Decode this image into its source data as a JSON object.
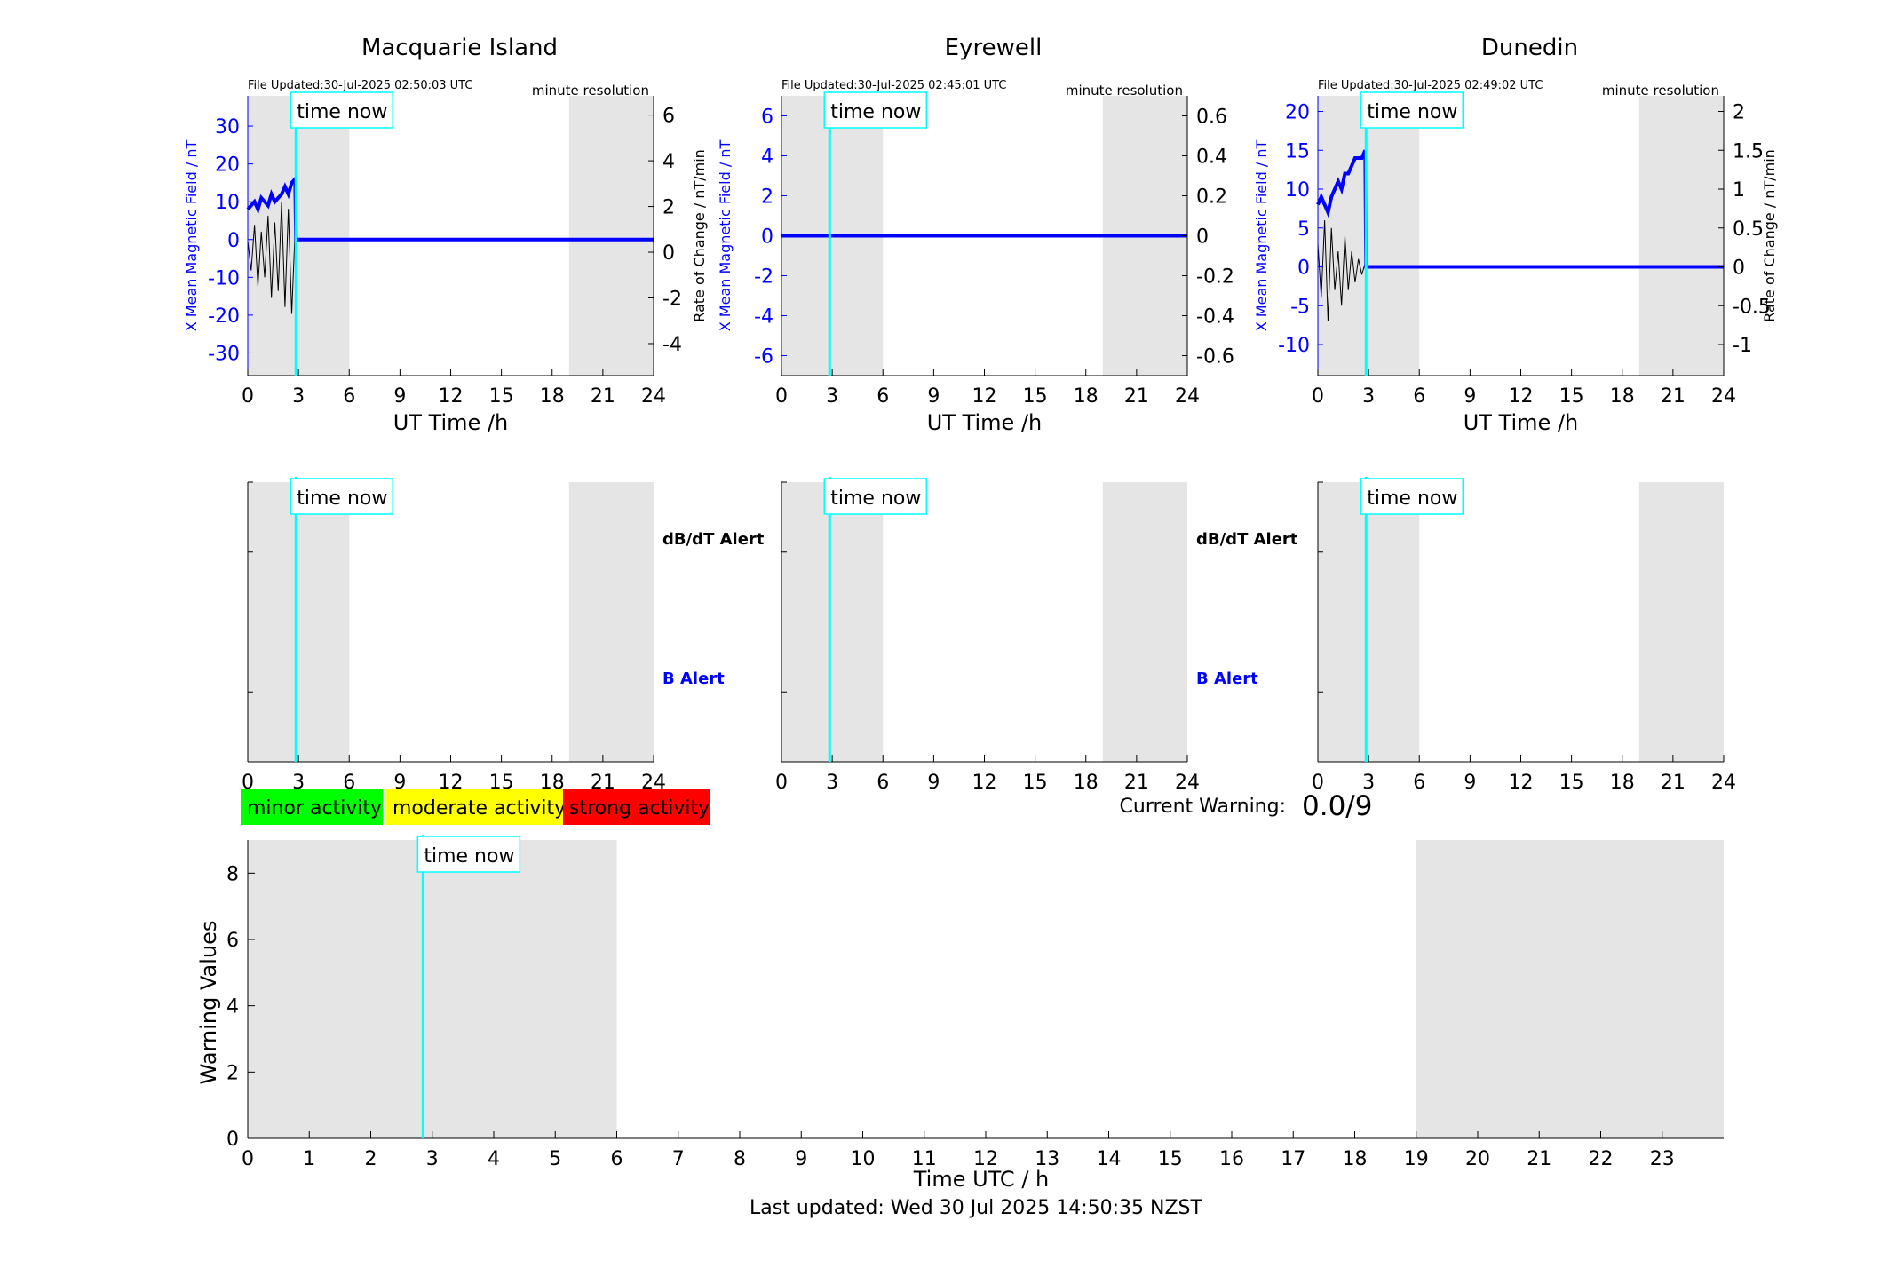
{
  "figure": {
    "last_updated": "Last updated: Wed 30 Jul 2025 14:50:35 NZST",
    "current_warning_label": "Current Warning:",
    "current_warning_value": "0.0/9",
    "legend": [
      {
        "label": "minor activity",
        "color": "#00ff00"
      },
      {
        "label": "moderate activity",
        "color": "#ffff00"
      },
      {
        "label": "strong activity",
        "color": "#ff0000"
      }
    ],
    "colors": {
      "shade": "#e5e5e5",
      "now_line": "#00ffff",
      "field": "#0000ff",
      "rate": "#000000",
      "b_alert": "#0000ff"
    }
  },
  "chart_data": [
    {
      "type": "line",
      "title": "Macquarie Island",
      "file_updated": "File Updated:30-Jul-2025 02:50:03 UTC",
      "resolution": "minute resolution",
      "xlabel": "UT Time /h",
      "ylabel_left": "X Mean Magnetic Field / nT",
      "ylabel_right": "Rate of Change / nT/min",
      "xlim": [
        0,
        24
      ],
      "xticks": [
        0,
        3,
        6,
        9,
        12,
        15,
        18,
        21,
        24
      ],
      "ylim_left": [
        -36,
        38
      ],
      "yticks_left": [
        -30,
        -20,
        -10,
        0,
        10,
        20,
        30
      ],
      "ylim_right": [
        -5.4,
        6.84
      ],
      "yticks_right": [
        -4,
        -2,
        0,
        2,
        4,
        6
      ],
      "now_label": "time now",
      "now_hour": 2.85,
      "shaded_hours": [
        [
          0,
          6
        ],
        [
          19,
          24
        ]
      ],
      "series": [
        {
          "x": [
            0,
            0.2,
            0.4,
            0.6,
            0.8,
            1.0,
            1.2,
            1.4,
            1.6,
            1.8,
            2.0,
            2.2,
            2.4,
            2.6,
            2.8,
            2.85,
            3.0,
            24
          ],
          "y": [
            8,
            9,
            10,
            8,
            11,
            10,
            9,
            12,
            10,
            11,
            12,
            14,
            12,
            15,
            16,
            0,
            0,
            0
          ]
        },
        {
          "x": [
            0,
            0.2,
            0.4,
            0.6,
            0.8,
            1.0,
            1.2,
            1.4,
            1.6,
            1.8,
            2.0,
            2.2,
            2.4,
            2.6,
            2.8,
            2.85
          ],
          "y": [
            0.5,
            -0.8,
            1.2,
            -1.5,
            0.9,
            -1.1,
            1.6,
            -2.0,
            1.3,
            -1.7,
            2.2,
            -2.4,
            1.9,
            -2.7,
            1.0,
            0
          ]
        }
      ]
    },
    {
      "type": "line",
      "title": "Eyrewell",
      "file_updated": "File Updated:30-Jul-2025 02:45:01 UTC",
      "resolution": "minute resolution",
      "xlabel": "UT Time /h",
      "ylabel_left": "X Mean Magnetic Field / nT",
      "ylabel_right": "",
      "xlim": [
        0,
        24
      ],
      "xticks": [
        0,
        3,
        6,
        9,
        12,
        15,
        18,
        21,
        24
      ],
      "ylim_left": [
        -7,
        7
      ],
      "yticks_left": [
        -6,
        -4,
        -2,
        0,
        2,
        4,
        6
      ],
      "ylim_right": [
        -0.7,
        0.7
      ],
      "yticks_right": [
        -0.6,
        -0.4,
        -0.2,
        0,
        0.2,
        0.4,
        0.6
      ],
      "now_label": "time now",
      "now_hour": 2.85,
      "shaded_hours": [
        [
          0,
          6
        ],
        [
          19,
          24
        ]
      ],
      "series": [
        {
          "x": [
            0,
            24
          ],
          "y": [
            0,
            0
          ]
        },
        {
          "x": [
            0,
            24
          ],
          "y": [
            0,
            0
          ]
        }
      ]
    },
    {
      "type": "line",
      "title": "Dunedin",
      "file_updated": "File Updated:30-Jul-2025 02:49:02 UTC",
      "resolution": "minute resolution",
      "xlabel": "UT Time /h",
      "ylabel_left": "X Mean Magnetic Field / nT",
      "ylabel_right": "Rate of Change / nT/min",
      "xlim": [
        0,
        24
      ],
      "xticks": [
        0,
        3,
        6,
        9,
        12,
        15,
        18,
        21,
        24
      ],
      "ylim_left": [
        -14,
        22
      ],
      "yticks_left": [
        -10,
        -5,
        0,
        5,
        10,
        15,
        20
      ],
      "ylim_right": [
        -1.4,
        2.2
      ],
      "yticks_right": [
        -1,
        -0.5,
        0,
        0.5,
        1,
        1.5,
        2
      ],
      "ytick_labels_right": [
        "-1",
        "-0.5",
        "0",
        "0.5",
        "1",
        "1.5",
        "2"
      ],
      "now_label": "time now",
      "now_hour": 2.85,
      "shaded_hours": [
        [
          0,
          6
        ],
        [
          19,
          24
        ]
      ],
      "series": [
        {
          "x": [
            0,
            0.2,
            0.4,
            0.6,
            0.8,
            1.0,
            1.2,
            1.4,
            1.6,
            1.8,
            2.0,
            2.2,
            2.4,
            2.6,
            2.8,
            2.85,
            3.0,
            24
          ],
          "y": [
            8,
            9,
            8,
            7,
            9,
            10,
            11,
            10,
            12,
            12,
            13,
            14,
            14,
            14,
            15,
            0,
            0,
            0
          ]
        },
        {
          "x": [
            0,
            0.2,
            0.4,
            0.6,
            0.8,
            1.0,
            1.2,
            1.4,
            1.6,
            1.8,
            2.0,
            2.2,
            2.4,
            2.6,
            2.8,
            2.85
          ],
          "y": [
            0.3,
            -0.4,
            0.6,
            -0.7,
            0.5,
            -0.3,
            0.2,
            -0.5,
            0.4,
            -0.3,
            0.2,
            -0.2,
            0.1,
            -0.1,
            0.05,
            0
          ]
        }
      ]
    },
    {
      "type": "line",
      "title": "",
      "xlabel": "",
      "ylabel": "",
      "xlim": [
        0,
        24
      ],
      "xticks": [
        0,
        3,
        6,
        9,
        12,
        15,
        18,
        21,
        24
      ],
      "ylim": [
        -1,
        1
      ],
      "dbdt_label": "dB/dT Alert",
      "b_label": "B Alert",
      "now_label": "time now",
      "now_hour": 2.85,
      "shaded_hours": [
        [
          0,
          6
        ],
        [
          19,
          24
        ]
      ],
      "series": [
        {
          "x": [
            0,
            24
          ],
          "y": [
            0,
            0
          ]
        }
      ]
    },
    {
      "type": "line",
      "title": "",
      "xlabel": "",
      "ylabel": "",
      "xlim": [
        0,
        24
      ],
      "xticks": [
        0,
        3,
        6,
        9,
        12,
        15,
        18,
        21,
        24
      ],
      "ylim": [
        -1,
        1
      ],
      "dbdt_label": "dB/dT Alert",
      "b_label": "B Alert",
      "now_label": "time now",
      "now_hour": 2.85,
      "shaded_hours": [
        [
          0,
          6
        ],
        [
          19,
          24
        ]
      ],
      "series": [
        {
          "x": [
            0,
            24
          ],
          "y": [
            0,
            0
          ]
        }
      ]
    },
    {
      "type": "line",
      "title": "",
      "xlabel": "",
      "ylabel": "",
      "xlim": [
        0,
        24
      ],
      "xticks": [
        0,
        3,
        6,
        9,
        12,
        15,
        18,
        21,
        24
      ],
      "ylim": [
        -1,
        1
      ],
      "now_label": "time now",
      "now_hour": 2.85,
      "shaded_hours": [
        [
          0,
          6
        ],
        [
          19,
          24
        ]
      ],
      "series": [
        {
          "x": [
            0,
            24
          ],
          "y": [
            0,
            0
          ]
        }
      ]
    },
    {
      "type": "bar",
      "title": "",
      "xlabel": "Time UTC / h",
      "ylabel": "Warning Values",
      "xlim": [
        0,
        24
      ],
      "xticks": [
        0,
        1,
        2,
        3,
        4,
        5,
        6,
        7,
        8,
        9,
        10,
        11,
        12,
        13,
        14,
        15,
        16,
        17,
        18,
        19,
        20,
        21,
        22,
        23
      ],
      "ylim": [
        0,
        9
      ],
      "yticks": [
        0,
        2,
        4,
        6,
        8
      ],
      "now_label": "time now",
      "now_hour": 2.85,
      "shaded_hours": [
        [
          0,
          6
        ],
        [
          19,
          24
        ]
      ],
      "values": []
    }
  ]
}
